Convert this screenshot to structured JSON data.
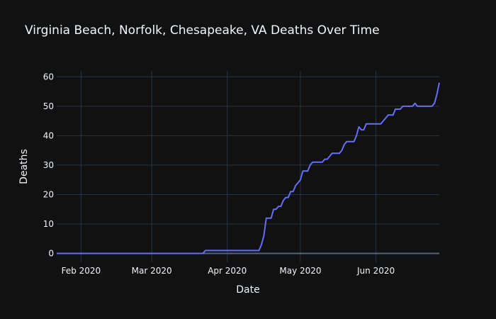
{
  "chart_data": {
    "type": "line",
    "title": "Virginia Beach, Norfolk, Chesapeake, VA Deaths Over Time",
    "xlabel": "Date",
    "ylabel": "Deaths",
    "xlim": [
      "2020-01-22",
      "2020-06-27"
    ],
    "ylim": [
      -3,
      62
    ],
    "x_ticks": [
      {
        "date": "2020-02-01",
        "label": "Feb 2020"
      },
      {
        "date": "2020-03-01",
        "label": "Mar 2020"
      },
      {
        "date": "2020-04-01",
        "label": "Apr 2020"
      },
      {
        "date": "2020-05-01",
        "label": "May 2020"
      },
      {
        "date": "2020-06-01",
        "label": "Jun 2020"
      }
    ],
    "y_ticks": [
      0,
      10,
      20,
      30,
      40,
      50,
      60
    ],
    "grid": true,
    "legend": "none",
    "colors": {
      "background": "#111111",
      "grid": "#283442",
      "zeroline": "#506784",
      "text": "#f2f5fa",
      "line": "#636efa"
    },
    "series": [
      {
        "points": [
          [
            "2020-01-22",
            0
          ],
          [
            "2020-03-22",
            0
          ],
          [
            "2020-03-23",
            1
          ],
          [
            "2020-04-14",
            1
          ],
          [
            "2020-04-15",
            3
          ],
          [
            "2020-04-16",
            6
          ],
          [
            "2020-04-17",
            12
          ],
          [
            "2020-04-19",
            12
          ],
          [
            "2020-04-20",
            15
          ],
          [
            "2020-04-21",
            15
          ],
          [
            "2020-04-22",
            16
          ],
          [
            "2020-04-23",
            16
          ],
          [
            "2020-04-24",
            18
          ],
          [
            "2020-04-25",
            19
          ],
          [
            "2020-04-26",
            19
          ],
          [
            "2020-04-27",
            21
          ],
          [
            "2020-04-28",
            21
          ],
          [
            "2020-04-29",
            23
          ],
          [
            "2020-04-30",
            24
          ],
          [
            "2020-05-01",
            25
          ],
          [
            "2020-05-02",
            28
          ],
          [
            "2020-05-04",
            28
          ],
          [
            "2020-05-05",
            30
          ],
          [
            "2020-05-06",
            31
          ],
          [
            "2020-05-10",
            31
          ],
          [
            "2020-05-11",
            32
          ],
          [
            "2020-05-12",
            32
          ],
          [
            "2020-05-13",
            33
          ],
          [
            "2020-05-14",
            34
          ],
          [
            "2020-05-17",
            34
          ],
          [
            "2020-05-18",
            35
          ],
          [
            "2020-05-19",
            37
          ],
          [
            "2020-05-20",
            38
          ],
          [
            "2020-05-23",
            38
          ],
          [
            "2020-05-24",
            40
          ],
          [
            "2020-05-25",
            43
          ],
          [
            "2020-05-26",
            42
          ],
          [
            "2020-05-27",
            42
          ],
          [
            "2020-05-28",
            44
          ],
          [
            "2020-06-03",
            44
          ],
          [
            "2020-06-04",
            45
          ],
          [
            "2020-06-05",
            46
          ],
          [
            "2020-06-06",
            47
          ],
          [
            "2020-06-08",
            47
          ],
          [
            "2020-06-09",
            49
          ],
          [
            "2020-06-11",
            49
          ],
          [
            "2020-06-12",
            50
          ],
          [
            "2020-06-16",
            50
          ],
          [
            "2020-06-17",
            51
          ],
          [
            "2020-06-18",
            50
          ],
          [
            "2020-06-24",
            50
          ],
          [
            "2020-06-25",
            51
          ],
          [
            "2020-06-26",
            54
          ],
          [
            "2020-06-27",
            58
          ]
        ]
      }
    ]
  }
}
